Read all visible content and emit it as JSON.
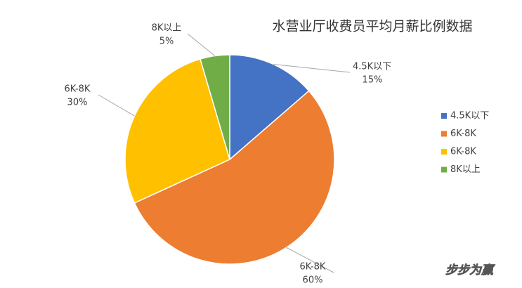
{
  "chart_data": {
    "type": "pie",
    "title": "水营业厅收费员平均月薪比例数据",
    "categories": [
      "4.5K以下",
      "6K-8K",
      "6K-8K",
      "8K以上"
    ],
    "values": [
      15,
      60,
      30,
      5
    ],
    "value_labels": [
      "15%",
      "60%",
      "30%",
      "5%"
    ],
    "colors": [
      "#4472c4",
      "#ed7d31",
      "#ffc000",
      "#70ad47"
    ],
    "legend": "right"
  },
  "watermark": "步步为赢"
}
